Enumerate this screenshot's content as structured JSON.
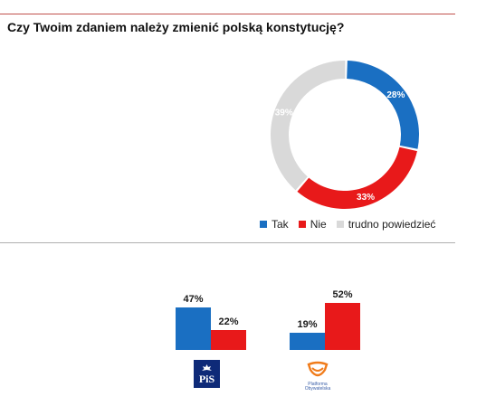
{
  "title": "Czy Twoim zdaniem należy zmienić polską konstytucję?",
  "colors": {
    "tak": "#1a6fc2",
    "nie": "#e8191a",
    "trudno": "#d9d9d9",
    "accent_rule": "#c0504d"
  },
  "chart_data": [
    {
      "type": "pie",
      "variant": "donut",
      "title": "Czy Twoim zdaniem należy zmienić polską konstytucję?",
      "categories": [
        "Tak",
        "Nie",
        "trudno powiedzieć"
      ],
      "values": [
        28,
        33,
        39
      ],
      "labels": [
        "28%",
        "33%",
        "39%"
      ],
      "colors": [
        "#1a6fc2",
        "#e8191a",
        "#d9d9d9"
      ],
      "legend_position": "bottom"
    },
    {
      "type": "bar",
      "categories": [
        "PiS",
        "Platforma Obywatelska"
      ],
      "series": [
        {
          "name": "Tak",
          "values": [
            47,
            19
          ],
          "color": "#1a6fc2"
        },
        {
          "name": "Nie",
          "values": [
            22,
            52
          ],
          "color": "#e8191a"
        }
      ],
      "labels": [
        [
          "47%",
          "19%"
        ],
        [
          "22%",
          "52%"
        ]
      ],
      "ylim": [
        0,
        100
      ],
      "grid": false,
      "category_logos": [
        "pis-logo",
        "platforma-obywatelska-logo"
      ]
    }
  ],
  "legend": {
    "tak": "Tak",
    "nie": "Nie",
    "trudno": "trudno powiedzieć"
  },
  "logos": {
    "pis_text": "PiS",
    "po_text_line1": "Platforma",
    "po_text_line2": "Obywatelska"
  }
}
